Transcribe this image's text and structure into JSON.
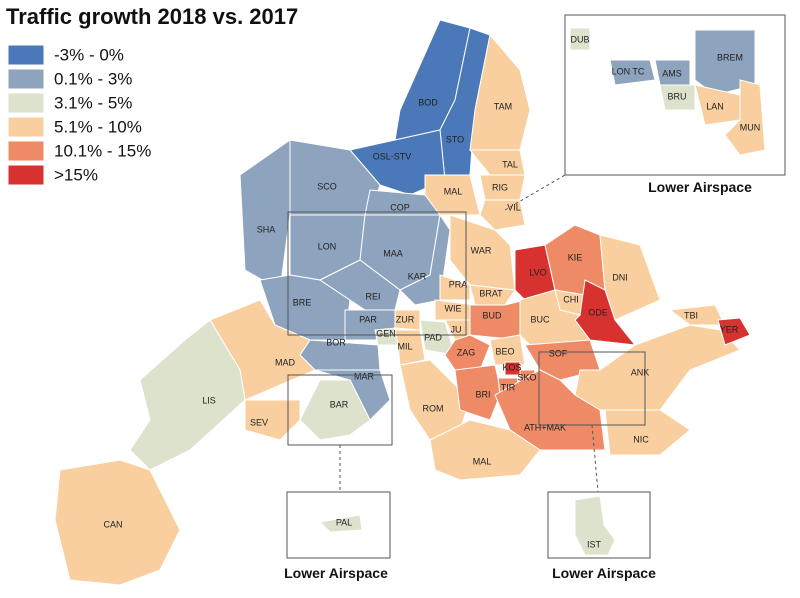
{
  "title": "Traffic growth 2018 vs. 2017",
  "legend": [
    {
      "label": "-3% - 0%",
      "color": "#4a78b8"
    },
    {
      "label": "0.1% - 3%",
      "color": "#8ea3be"
    },
    {
      "label": "3.1% - 5%",
      "color": "#dde2cd"
    },
    {
      "label": "5.1% - 10%",
      "color": "#f9cf9f"
    },
    {
      "label": "10.1% - 15%",
      "color": "#ef8a66"
    },
    {
      "label": ">15%",
      "color": "#d7322f"
    }
  ],
  "regions": [
    {
      "label": "BOD",
      "color": "#4a78b8"
    },
    {
      "label": "STO",
      "color": "#4a78b8"
    },
    {
      "label": "OSL-STV",
      "color": "#4a78b8"
    },
    {
      "label": "TAM",
      "color": "#f9cf9f"
    },
    {
      "label": "TAL",
      "color": "#f9cf9f"
    },
    {
      "label": "RIG",
      "color": "#f9cf9f"
    },
    {
      "label": "VIL",
      "color": "#f9cf9f"
    },
    {
      "label": "MAL",
      "color": "#f9cf9f"
    },
    {
      "label": "SCO",
      "color": "#8ea3be"
    },
    {
      "label": "COP",
      "color": "#8ea3be"
    },
    {
      "label": "SHA",
      "color": "#8ea3be"
    },
    {
      "label": "LON",
      "color": "#8ea3be"
    },
    {
      "label": "MAA",
      "color": "#8ea3be"
    },
    {
      "label": "KAR",
      "color": "#8ea3be"
    },
    {
      "label": "WAR",
      "color": "#f9cf9f"
    },
    {
      "label": "LVO",
      "color": "#d7322f"
    },
    {
      "label": "KIE",
      "color": "#ef8a66"
    },
    {
      "label": "DNI",
      "color": "#f9cf9f"
    },
    {
      "label": "BRE",
      "color": "#8ea3be"
    },
    {
      "label": "REI",
      "color": "#8ea3be"
    },
    {
      "label": "PRA",
      "color": "#f9cf9f"
    },
    {
      "label": "BRAT",
      "color": "#f9cf9f"
    },
    {
      "label": "WIE",
      "color": "#f9cf9f"
    },
    {
      "label": "CHI",
      "color": "#f9cf9f"
    },
    {
      "label": "ODE",
      "color": "#d7322f"
    },
    {
      "label": "BUD",
      "color": "#ef8a66"
    },
    {
      "label": "BUC",
      "color": "#f9cf9f"
    },
    {
      "label": "ZUR",
      "color": "#f9cf9f"
    },
    {
      "label": "PAR",
      "color": "#8ea3be"
    },
    {
      "label": "GEN",
      "color": "#dde2cd"
    },
    {
      "label": "PAD",
      "color": "#dde2cd"
    },
    {
      "label": "JU",
      "color": "#f9cf9f"
    },
    {
      "label": "BOR",
      "color": "#8ea3be"
    },
    {
      "label": "MIL",
      "color": "#f9cf9f"
    },
    {
      "label": "ZAG",
      "color": "#ef8a66"
    },
    {
      "label": "BEO",
      "color": "#f9cf9f"
    },
    {
      "label": "SOF",
      "color": "#ef8a66"
    },
    {
      "label": "MAD",
      "color": "#f9cf9f"
    },
    {
      "label": "KOS",
      "color": "#d7322f"
    },
    {
      "label": "SKO",
      "color": "#ef8a66"
    },
    {
      "label": "TIR",
      "color": "#ef8a66"
    },
    {
      "label": "ANK",
      "color": "#f9cf9f"
    },
    {
      "label": "MAR",
      "color": "#8ea3be"
    },
    {
      "label": "LIS",
      "color": "#dde2cd"
    },
    {
      "label": "BAR",
      "color": "#dde2cd"
    },
    {
      "label": "ROM",
      "color": "#f9cf9f"
    },
    {
      "label": "BRI",
      "color": "#ef8a66"
    },
    {
      "label": "SEV",
      "color": "#f9cf9f"
    },
    {
      "label": "ATH+MAK",
      "color": "#ef8a66"
    },
    {
      "label": "NIC",
      "color": "#f9cf9f"
    },
    {
      "label": "MAL",
      "color": "#f9cf9f"
    },
    {
      "label": "CAN",
      "color": "#f9cf9f"
    },
    {
      "label": "TBI",
      "color": "#f9cf9f"
    },
    {
      "label": "YER",
      "color": "#d7322f"
    },
    {
      "label": "DUB",
      "color": "#dde2cd"
    },
    {
      "label": "LON TC",
      "color": "#8ea3be"
    },
    {
      "label": "AMS",
      "color": "#8ea3be"
    },
    {
      "label": "BREM",
      "color": "#8ea3be"
    },
    {
      "label": "BRU",
      "color": "#dde2cd"
    },
    {
      "label": "LAN",
      "color": "#f9cf9f"
    },
    {
      "label": "MUN",
      "color": "#f9cf9f"
    },
    {
      "label": "PAL",
      "color": "#dde2cd"
    },
    {
      "label": "IST",
      "color": "#dde2cd"
    }
  ],
  "insets": [
    {
      "title": "Lower Airspace"
    },
    {
      "title": "Lower Airspace"
    },
    {
      "title": "Lower Airspace"
    }
  ]
}
